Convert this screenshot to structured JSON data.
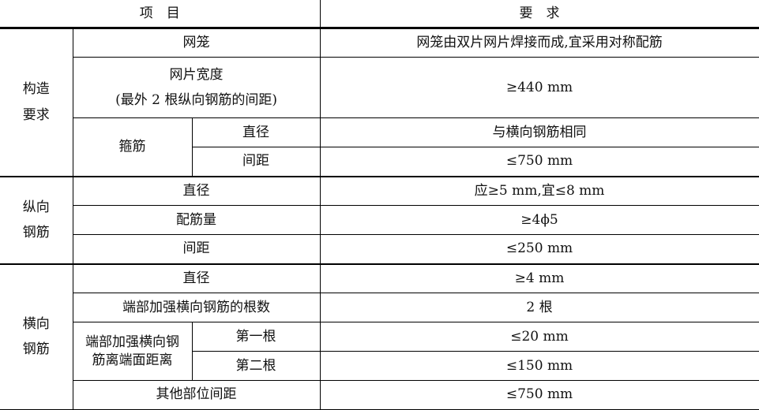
{
  "table": {
    "header": {
      "item": "项　目",
      "requirement": "要　求"
    },
    "sections": [
      {
        "category": "构造\n要求",
        "rows": [
          {
            "item": "网笼",
            "requirement": "网笼由双片网片焊接而成,宜采用对称配筋"
          },
          {
            "item": "网片宽度\n(最外 2 根纵向钢筋的间距)",
            "requirement": "≥440 mm"
          },
          {
            "group": "箍筋",
            "item": "直径",
            "requirement": "与横向钢筋相同"
          },
          {
            "item": "间距",
            "requirement": "≤750 mm"
          }
        ]
      },
      {
        "category": "纵向\n钢筋",
        "rows": [
          {
            "item": "直径",
            "requirement": "应≥5 mm,宜≤8 mm"
          },
          {
            "item": "配筋量",
            "requirement": "≥4ϕ5"
          },
          {
            "item": "间距",
            "requirement": "≤250 mm"
          }
        ]
      },
      {
        "category": "横向\n钢筋",
        "rows": [
          {
            "item": "直径",
            "requirement": "≥4 mm"
          },
          {
            "item": "端部加强横向钢筋的根数",
            "requirement": "2 根"
          },
          {
            "group": "端部加强横向钢\n筋离端面距离",
            "item": "第一根",
            "requirement": "≤20 mm"
          },
          {
            "item": "第二根",
            "requirement": "≤150 mm"
          },
          {
            "item": "其他部位间距",
            "requirement": "≤750 mm"
          }
        ]
      }
    ]
  }
}
